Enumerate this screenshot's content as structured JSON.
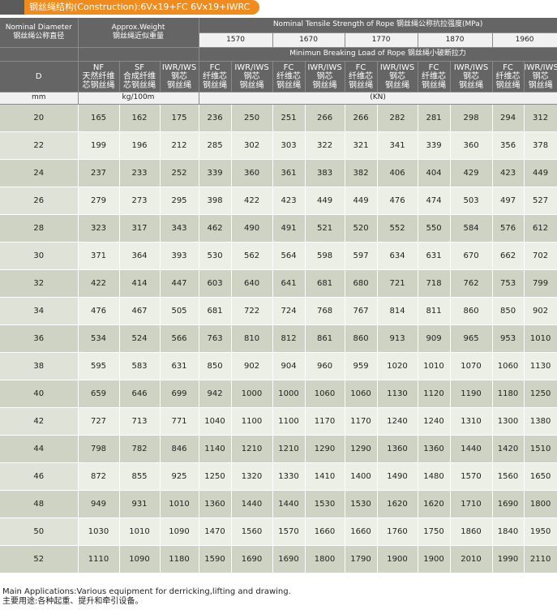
{
  "title": "钢丝绳结构(Construction):6Vx19+FC  6Vx19+IWRC",
  "header": {
    "diameter_en": "Nominal Diameter",
    "diameter_cn": "钢丝绳公称直径",
    "weight_en": "Approx.Weight",
    "weight_cn": "钢丝绳近似重量",
    "tensile": "Nominal Tensile Strength of Rope  钢丝绳公称抗拉强度(MPa)",
    "grades": [
      "1570",
      "1670",
      "1770",
      "1870",
      "1960"
    ],
    "breaking": "Minimun Breaking Load of Rope  钢丝绳小破断拉力",
    "D": "D",
    "weight_types": [
      {
        "l1": "NF",
        "l2": "天然纤维",
        "l3": "芯钢丝绳"
      },
      {
        "l1": "SF",
        "l2": "合成纤维",
        "l3": "芯钢丝绳"
      },
      {
        "l1": "IWR/IWS",
        "l2": "钢芯",
        "l3": "钢丝绳"
      }
    ],
    "load_types": [
      {
        "l1": "FC",
        "l2": "纤维芯",
        "l3": "钢丝绳"
      },
      {
        "l1": "IWR/IWS",
        "l2": "钢芯",
        "l3": "钢丝绳"
      }
    ],
    "unit_mm": "mm",
    "unit_weight": "kg/100m",
    "unit_load": "(KN)"
  },
  "rows": [
    [
      "20",
      "165",
      "162",
      "175",
      "236",
      "250",
      "251",
      "266",
      "266",
      "282",
      "281",
      "298",
      "294",
      "312"
    ],
    [
      "22",
      "199",
      "196",
      "212",
      "285",
      "302",
      "303",
      "322",
      "321",
      "341",
      "339",
      "360",
      "356",
      "378"
    ],
    [
      "24",
      "237",
      "233",
      "252",
      "339",
      "360",
      "361",
      "383",
      "382",
      "406",
      "404",
      "429",
      "423",
      "449"
    ],
    [
      "26",
      "279",
      "273",
      "295",
      "398",
      "422",
      "423",
      "449",
      "449",
      "476",
      "474",
      "503",
      "497",
      "527"
    ],
    [
      "28",
      "323",
      "317",
      "343",
      "462",
      "490",
      "491",
      "521",
      "520",
      "552",
      "550",
      "584",
      "576",
      "612"
    ],
    [
      "30",
      "371",
      "364",
      "393",
      "530",
      "562",
      "564",
      "598",
      "597",
      "634",
      "631",
      "670",
      "662",
      "702"
    ],
    [
      "32",
      "422",
      "414",
      "447",
      "603",
      "640",
      "641",
      "681",
      "680",
      "721",
      "718",
      "762",
      "753",
      "799"
    ],
    [
      "34",
      "476",
      "467",
      "505",
      "681",
      "722",
      "724",
      "768",
      "767",
      "814",
      "811",
      "860",
      "850",
      "902"
    ],
    [
      "36",
      "534",
      "524",
      "566",
      "763",
      "810",
      "812",
      "861",
      "860",
      "913",
      "909",
      "965",
      "953",
      "1010"
    ],
    [
      "38",
      "595",
      "583",
      "631",
      "850",
      "902",
      "904",
      "960",
      "959",
      "1020",
      "1010",
      "1070",
      "1060",
      "1130"
    ],
    [
      "40",
      "659",
      "646",
      "699",
      "942",
      "1000",
      "1000",
      "1060",
      "1060",
      "1130",
      "1120",
      "1190",
      "1180",
      "1250"
    ],
    [
      "42",
      "727",
      "713",
      "771",
      "1040",
      "1100",
      "1100",
      "1170",
      "1170",
      "1240",
      "1240",
      "1310",
      "1300",
      "1380"
    ],
    [
      "44",
      "798",
      "782",
      "846",
      "1140",
      "1210",
      "1210",
      "1290",
      "1290",
      "1360",
      "1360",
      "1440",
      "1420",
      "1510"
    ],
    [
      "46",
      "872",
      "855",
      "925",
      "1250",
      "1320",
      "1330",
      "1410",
      "1400",
      "1490",
      "1480",
      "1570",
      "1560",
      "1650"
    ],
    [
      "48",
      "949",
      "931",
      "1010",
      "1360",
      "1440",
      "1440",
      "1530",
      "1530",
      "1620",
      "1620",
      "1710",
      "1690",
      "1800"
    ],
    [
      "50",
      "1030",
      "1010",
      "1090",
      "1470",
      "1560",
      "1570",
      "1660",
      "1660",
      "1760",
      "1750",
      "1860",
      "1840",
      "1950"
    ],
    [
      "52",
      "1110",
      "1090",
      "1180",
      "1590",
      "1690",
      "1690",
      "1800",
      "1790",
      "1900",
      "1900",
      "2010",
      "1990",
      "2110"
    ]
  ],
  "footer": {
    "en": "Main Applications:Various equipment for derricking,lifting and drawing.",
    "cn": "主要用途:各种起重、提升和牵引设备。"
  },
  "colors": {
    "header_dark": "#656565",
    "title_orange": "#f08c1e",
    "row_dark": "#cfd3c3",
    "row_light": "#ecefe6"
  }
}
